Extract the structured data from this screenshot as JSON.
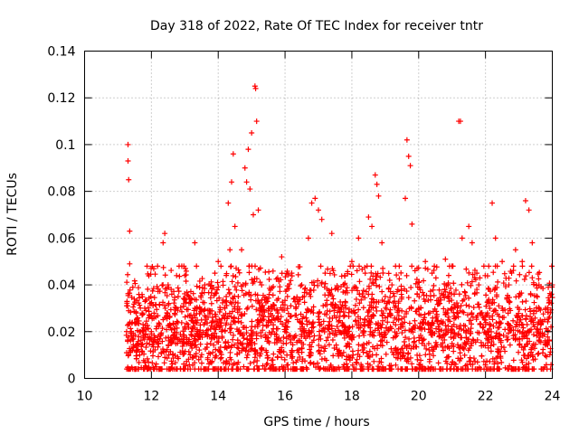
{
  "chart_data": {
    "type": "scatter",
    "title": "Day 318 of 2022, Rate Of TEC Index for receiver tntr",
    "xlabel": "GPS time / hours",
    "ylabel": "ROTI / TECUs",
    "xlim": [
      10,
      24
    ],
    "ylim": [
      0,
      0.14
    ],
    "x_ticks": [
      10,
      12,
      14,
      16,
      18,
      20,
      22,
      24
    ],
    "x_tick_labels": [
      "10",
      "12",
      "14",
      "16",
      "18",
      "20",
      "22",
      "24"
    ],
    "y_ticks": [
      0,
      0.02,
      0.04,
      0.06,
      0.08,
      0.1,
      0.12,
      0.14
    ],
    "y_tick_labels": [
      "0",
      "0.02",
      "0.04",
      "0.06",
      "0.08",
      "0.1",
      "0.12",
      "0.14"
    ],
    "grid": true,
    "marker": "plus",
    "series": [
      {
        "name": "ROTI",
        "color": "#ff0000",
        "x": [
          11.3,
          11.3,
          11.32,
          11.35,
          11.35,
          11.4,
          11.5,
          11.6,
          11.8,
          12.0,
          12.2,
          12.35,
          12.4,
          12.4,
          12.5,
          12.6,
          12.8,
          13.0,
          13.2,
          13.3,
          13.3,
          13.5,
          13.6,
          13.8,
          13.9,
          14.0,
          14.2,
          14.3,
          14.35,
          14.4,
          14.45,
          14.5,
          14.6,
          14.7,
          14.8,
          14.85,
          14.9,
          14.95,
          15.0,
          15.05,
          15.1,
          15.12,
          15.15,
          15.2,
          15.3,
          15.5,
          15.7,
          15.9,
          16.0,
          16.2,
          16.3,
          16.5,
          16.7,
          16.8,
          16.9,
          17.0,
          17.1,
          17.2,
          17.4,
          17.6,
          17.8,
          18.0,
          18.2,
          18.4,
          18.5,
          18.6,
          18.7,
          18.75,
          18.8,
          18.9,
          19.0,
          19.2,
          19.4,
          19.6,
          19.65,
          19.7,
          19.75,
          19.8,
          20.0,
          20.2,
          20.4,
          20.6,
          20.8,
          21.0,
          21.2,
          21.25,
          21.3,
          21.5,
          21.6,
          21.8,
          22.0,
          22.2,
          22.3,
          22.5,
          22.7,
          22.9,
          23.0,
          23.1,
          23.2,
          23.3,
          23.4,
          23.6,
          23.8,
          24.0
        ],
        "y": [
          0.093,
          0.1,
          0.085,
          0.063,
          0.049,
          0.02,
          0.024,
          0.015,
          0.03,
          0.02,
          0.018,
          0.058,
          0.062,
          0.026,
          0.04,
          0.015,
          0.035,
          0.022,
          0.02,
          0.058,
          0.03,
          0.025,
          0.04,
          0.032,
          0.045,
          0.05,
          0.03,
          0.075,
          0.055,
          0.084,
          0.096,
          0.065,
          0.035,
          0.055,
          0.09,
          0.084,
          0.098,
          0.081,
          0.105,
          0.07,
          0.125,
          0.124,
          0.11,
          0.072,
          0.04,
          0.03,
          0.025,
          0.052,
          0.02,
          0.045,
          0.027,
          0.04,
          0.06,
          0.075,
          0.077,
          0.072,
          0.068,
          0.045,
          0.062,
          0.03,
          0.02,
          0.05,
          0.06,
          0.045,
          0.069,
          0.065,
          0.087,
          0.083,
          0.078,
          0.058,
          0.035,
          0.04,
          0.025,
          0.077,
          0.102,
          0.095,
          0.091,
          0.066,
          0.03,
          0.05,
          0.045,
          0.02,
          0.051,
          0.03,
          0.11,
          0.11,
          0.06,
          0.065,
          0.058,
          0.04,
          0.025,
          0.075,
          0.06,
          0.05,
          0.04,
          0.055,
          0.035,
          0.05,
          0.076,
          0.072,
          0.058,
          0.04,
          0.03,
          0.04
        ]
      }
    ],
    "background_cloud": {
      "x_range": [
        11.25,
        24
      ],
      "typical_range": [
        0.004,
        0.045
      ],
      "median": 0.02
    }
  }
}
